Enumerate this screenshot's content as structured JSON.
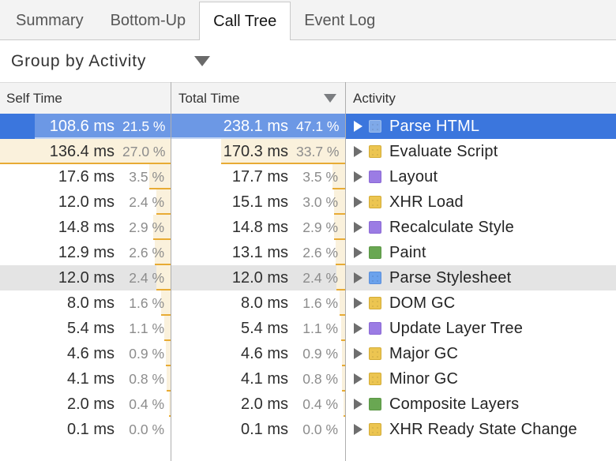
{
  "tabs": {
    "items": [
      {
        "label": "Summary",
        "active": false
      },
      {
        "label": "Bottom-Up",
        "active": false
      },
      {
        "label": "Call Tree",
        "active": true
      },
      {
        "label": "Event Log",
        "active": false
      }
    ]
  },
  "toolbar": {
    "group_by_label": "Group by Activity"
  },
  "table": {
    "columns": {
      "self": "Self Time",
      "total": "Total Time",
      "activity": "Activity"
    },
    "sort_column": "Total Time",
    "sort_direction": "desc",
    "max_self_pct": 27.0,
    "max_total_pct": 47.1,
    "rows": [
      {
        "self_ms": "108.6 ms",
        "self_pct": "21.5 %",
        "self_pct_val": 21.5,
        "total_ms": "238.1 ms",
        "total_pct": "47.1 %",
        "total_pct_val": 47.1,
        "activity": "Parse HTML",
        "category": "loading",
        "state": "selected"
      },
      {
        "self_ms": "136.4 ms",
        "self_pct": "27.0 %",
        "self_pct_val": 27.0,
        "total_ms": "170.3 ms",
        "total_pct": "33.7 %",
        "total_pct_val": 33.7,
        "activity": "Evaluate Script",
        "category": "scripting",
        "state": ""
      },
      {
        "self_ms": "17.6 ms",
        "self_pct": "3.5 %",
        "self_pct_val": 3.5,
        "total_ms": "17.7 ms",
        "total_pct": "3.5 %",
        "total_pct_val": 3.5,
        "activity": "Layout",
        "category": "rendering",
        "state": ""
      },
      {
        "self_ms": "12.0 ms",
        "self_pct": "2.4 %",
        "self_pct_val": 2.4,
        "total_ms": "15.1 ms",
        "total_pct": "3.0 %",
        "total_pct_val": 3.0,
        "activity": "XHR Load",
        "category": "scripting",
        "state": ""
      },
      {
        "self_ms": "14.8 ms",
        "self_pct": "2.9 %",
        "self_pct_val": 2.9,
        "total_ms": "14.8 ms",
        "total_pct": "2.9 %",
        "total_pct_val": 2.9,
        "activity": "Recalculate Style",
        "category": "rendering",
        "state": ""
      },
      {
        "self_ms": "12.9 ms",
        "self_pct": "2.6 %",
        "self_pct_val": 2.6,
        "total_ms": "13.1 ms",
        "total_pct": "2.6 %",
        "total_pct_val": 2.6,
        "activity": "Paint",
        "category": "painting",
        "state": ""
      },
      {
        "self_ms": "12.0 ms",
        "self_pct": "2.4 %",
        "self_pct_val": 2.4,
        "total_ms": "12.0 ms",
        "total_pct": "2.4 %",
        "total_pct_val": 2.4,
        "activity": "Parse Stylesheet",
        "category": "loading",
        "state": "hovered"
      },
      {
        "self_ms": "8.0 ms",
        "self_pct": "1.6 %",
        "self_pct_val": 1.6,
        "total_ms": "8.0 ms",
        "total_pct": "1.6 %",
        "total_pct_val": 1.6,
        "activity": "DOM GC",
        "category": "scripting",
        "state": ""
      },
      {
        "self_ms": "5.4 ms",
        "self_pct": "1.1 %",
        "self_pct_val": 1.1,
        "total_ms": "5.4 ms",
        "total_pct": "1.1 %",
        "total_pct_val": 1.1,
        "activity": "Update Layer Tree",
        "category": "rendering",
        "state": ""
      },
      {
        "self_ms": "4.6 ms",
        "self_pct": "0.9 %",
        "self_pct_val": 0.9,
        "total_ms": "4.6 ms",
        "total_pct": "0.9 %",
        "total_pct_val": 0.9,
        "activity": "Major GC",
        "category": "scripting",
        "state": ""
      },
      {
        "self_ms": "4.1 ms",
        "self_pct": "0.8 %",
        "self_pct_val": 0.8,
        "total_ms": "4.1 ms",
        "total_pct": "0.8 %",
        "total_pct_val": 0.8,
        "activity": "Minor GC",
        "category": "scripting",
        "state": ""
      },
      {
        "self_ms": "2.0 ms",
        "self_pct": "0.4 %",
        "self_pct_val": 0.4,
        "total_ms": "2.0 ms",
        "total_pct": "0.4 %",
        "total_pct_val": 0.4,
        "activity": "Composite Layers",
        "category": "painting",
        "state": ""
      },
      {
        "self_ms": "0.1 ms",
        "self_pct": "0.0 %",
        "self_pct_val": 0.0,
        "total_ms": "0.1 ms",
        "total_pct": "0.0 %",
        "total_pct_val": 0.0,
        "activity": "XHR Ready State Change",
        "category": "scripting",
        "state": ""
      }
    ]
  },
  "colors": {
    "selection": "#3b76dd",
    "bar_fill": "#faf1dc",
    "bar_border": "#e8ab34",
    "hover": "#e4e4e4",
    "loading": "#6ba2ec",
    "scripting": "#ecc551",
    "rendering": "#9b7ce4",
    "painting": "#69a752"
  }
}
